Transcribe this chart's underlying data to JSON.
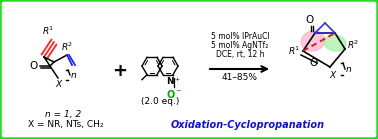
{
  "bg_color": "#ffffff",
  "border_color": "#22dd22",
  "fig_width": 3.78,
  "fig_height": 1.39,
  "dpi": 100,
  "reaction_conditions": [
    "5 mol% IPrAuCl",
    "5 mol% AgNTf₂",
    "DCE, rt, 12 h"
  ],
  "yield_text": "41–85%",
  "bottom_left_text1": "n = 1, 2",
  "bottom_left_text2": "X = NR, NTs, CH₂",
  "bottom_right_text": "Oxidation-Cyclopropanation",
  "equiv_text": "(2.0 eq.)",
  "alkyne_color": "#ee3333",
  "alkene_color": "#2222ee",
  "N_oxide_color": "#00aa00",
  "bottom_text_color": "#1111cc",
  "pink_fill": "#ffaacc",
  "green_fill": "#88ee88"
}
